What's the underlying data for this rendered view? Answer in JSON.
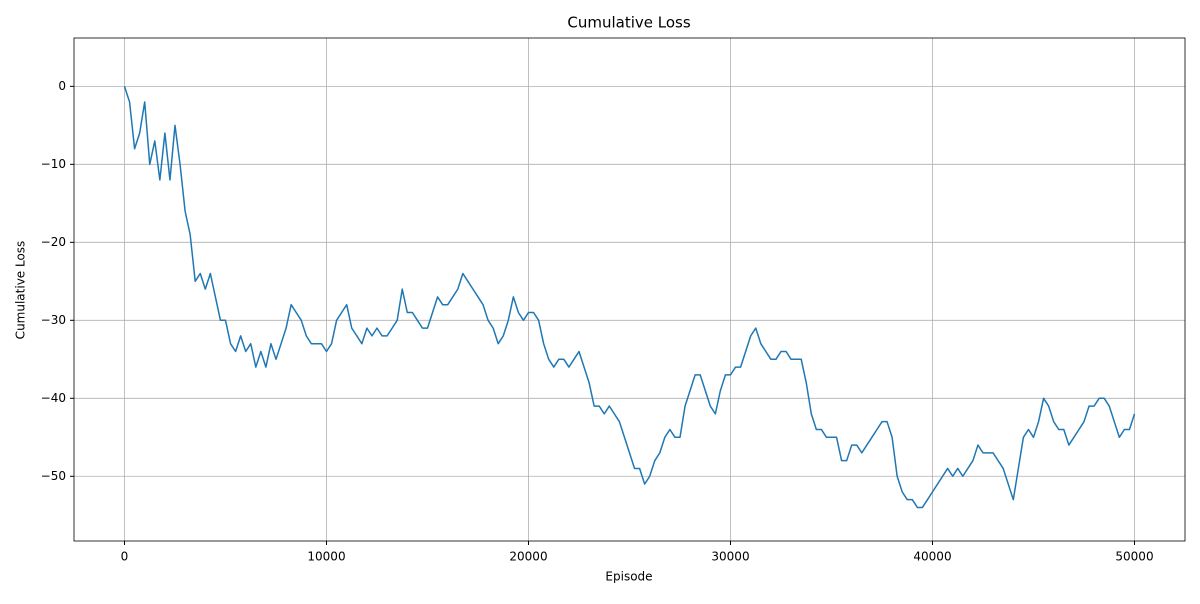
{
  "chart_data": {
    "type": "line",
    "title": "Cumulative Loss",
    "xlabel": "Episode",
    "ylabel": "Cumulative Loss",
    "x": [
      0,
      250,
      500,
      750,
      1000,
      1250,
      1500,
      1750,
      2000,
      2250,
      2500,
      2750,
      3000,
      3250,
      3500,
      3750,
      4000,
      4250,
      4500,
      4750,
      5000,
      5250,
      5500,
      5750,
      6000,
      6250,
      6500,
      6750,
      7000,
      7250,
      7500,
      7750,
      8000,
      8250,
      8500,
      8750,
      9000,
      9250,
      9500,
      9750,
      10000,
      10250,
      10500,
      10750,
      11000,
      11250,
      11500,
      11750,
      12000,
      12250,
      12500,
      12750,
      13000,
      13250,
      13500,
      13750,
      14000,
      14250,
      14500,
      14750,
      15000,
      15250,
      15500,
      15750,
      16000,
      16250,
      16500,
      16750,
      17000,
      17250,
      17500,
      17750,
      18000,
      18250,
      18500,
      18750,
      19000,
      19250,
      19500,
      19750,
      20000,
      20250,
      20500,
      20750,
      21000,
      21250,
      21500,
      21750,
      22000,
      22250,
      22500,
      22750,
      23000,
      23250,
      23500,
      23750,
      24000,
      24250,
      24500,
      24750,
      25000,
      25250,
      25500,
      25750,
      26000,
      26250,
      26500,
      26750,
      27000,
      27250,
      27500,
      27750,
      28000,
      28250,
      28500,
      28750,
      29000,
      29250,
      29500,
      29750,
      30000,
      30250,
      30500,
      30750,
      31000,
      31250,
      31500,
      31750,
      32000,
      32250,
      32500,
      32750,
      33000,
      33250,
      33500,
      33750,
      34000,
      34250,
      34500,
      34750,
      35000,
      35250,
      35500,
      35750,
      36000,
      36250,
      36500,
      36750,
      37000,
      37250,
      37500,
      37750,
      38000,
      38250,
      38500,
      38750,
      39000,
      39250,
      39500,
      39750,
      40000,
      40250,
      40500,
      40750,
      41000,
      41250,
      41500,
      41750,
      42000,
      42250,
      42500,
      42750,
      43000,
      43250,
      43500,
      43750,
      44000,
      44250,
      44500,
      44750,
      45000,
      45250,
      45500,
      45750,
      46000,
      46250,
      46500,
      46750,
      47000,
      47250,
      47500,
      47750,
      48000,
      48250,
      48500,
      48750,
      49000,
      49250,
      49500,
      49750,
      50000
    ],
    "series": [
      {
        "name": "Cumulative Loss",
        "color": "#1f77b4",
        "values": [
          0,
          -2,
          -8,
          -6,
          -2,
          -10,
          -7,
          -12,
          -6,
          -12,
          -5,
          -10,
          -16,
          -19,
          -25,
          -24,
          -26,
          -24,
          -27,
          -30,
          -30,
          -33,
          -34,
          -32,
          -34,
          -33,
          -36,
          -34,
          -36,
          -33,
          -35,
          -33,
          -31,
          -28,
          -29,
          -30,
          -32,
          -33,
          -33,
          -33,
          -34,
          -33,
          -30,
          -29,
          -28,
          -31,
          -32,
          -33,
          -31,
          -32,
          -31,
          -32,
          -32,
          -31,
          -30,
          -26,
          -29,
          -29,
          -30,
          -31,
          -31,
          -29,
          -27,
          -28,
          -28,
          -27,
          -26,
          -24,
          -25,
          -26,
          -27,
          -28,
          -30,
          -31,
          -33,
          -32,
          -30,
          -27,
          -29,
          -30,
          -29,
          -29,
          -30,
          -33,
          -35,
          -36,
          -35,
          -35,
          -36,
          -35,
          -34,
          -36,
          -38,
          -41,
          -41,
          -42,
          -41,
          -42,
          -43,
          -45,
          -47,
          -49,
          -49,
          -51,
          -50,
          -48,
          -47,
          -45,
          -44,
          -45,
          -45,
          -41,
          -39,
          -37,
          -37,
          -39,
          -41,
          -42,
          -39,
          -37,
          -37,
          -36,
          -36,
          -34,
          -32,
          -31,
          -33,
          -34,
          -35,
          -35,
          -34,
          -34,
          -35,
          -35,
          -35,
          -38,
          -42,
          -44,
          -44,
          -45,
          -45,
          -45,
          -48,
          -48,
          -46,
          -46,
          -47,
          -46,
          -45,
          -44,
          -43,
          -43,
          -45,
          -50,
          -52,
          -53,
          -53,
          -54,
          -54,
          -53,
          -52,
          -51,
          -50,
          -49,
          -50,
          -49,
          -50,
          -49,
          -48,
          -46,
          -47,
          -47,
          -47,
          -48,
          -49,
          -51,
          -53,
          -49,
          -45,
          -44,
          -45,
          -43,
          -40,
          -41,
          -43,
          -44,
          -44,
          -46,
          -45,
          -44,
          -43,
          -41,
          -41,
          -40,
          -40,
          -41,
          -43,
          -45,
          -44,
          -44,
          -42
        ]
      }
    ],
    "xlim": [
      -2500,
      52500
    ],
    "ylim": [
      -58.3,
      6.2
    ],
    "xticks": [
      0,
      10000,
      20000,
      30000,
      40000,
      50000
    ],
    "yticks": [
      {
        "value": -50,
        "label": "−50"
      },
      {
        "value": -40,
        "label": "−40"
      },
      {
        "value": -30,
        "label": "−30"
      },
      {
        "value": -20,
        "label": "−20"
      },
      {
        "value": -10,
        "label": "−10"
      },
      0
    ],
    "grid": true
  }
}
